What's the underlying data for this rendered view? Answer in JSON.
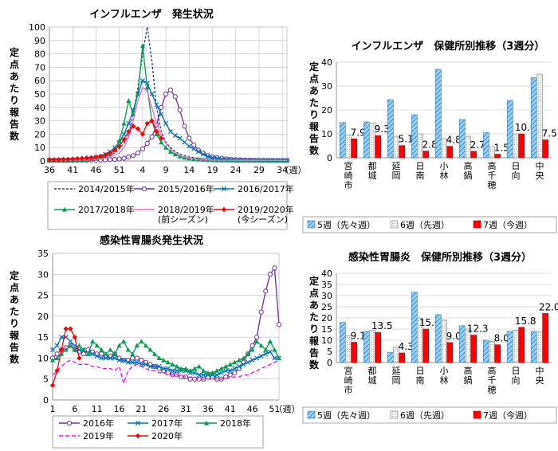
{
  "chart_data": [
    {
      "id": "flu_trend",
      "type": "line",
      "title": "インフルエンザ　発生状況",
      "ylabel": "定点あたり報告数",
      "xlabel": "（週）",
      "ylim": [
        0,
        100
      ],
      "yticks": [
        0,
        10,
        20,
        30,
        40,
        50,
        60,
        70,
        80,
        90,
        100
      ],
      "x_tick_labels": [
        "36",
        "41",
        "46",
        "51",
        "4",
        "9",
        "14",
        "19",
        "24",
        "29",
        "34"
      ],
      "grid": true,
      "legend_position": "bottom",
      "series": [
        {
          "name": "2014/2015年",
          "color": "#1f3f8f",
          "marker": "none",
          "dash": "3,2",
          "values": [
            0.5,
            0.5,
            0.5,
            0.5,
            0.6,
            0.6,
            0.7,
            0.8,
            1,
            1.2,
            1.5,
            2,
            3,
            4,
            6,
            9,
            13,
            20,
            35,
            55,
            80,
            100,
            75,
            40,
            22,
            14,
            10,
            7,
            5,
            4,
            3,
            2.5,
            2,
            1.5,
            1.2,
            1,
            0.8,
            0.7,
            0.6,
            0.5,
            0.5,
            0.5,
            0.4,
            0.4,
            0.4,
            0.4,
            0.3,
            0.3,
            0.3,
            0.3,
            0.3,
            0.3
          ]
        },
        {
          "name": "2015/2016年",
          "color": "#7030a0",
          "marker": "circle",
          "dash": "",
          "values": [
            0.5,
            0.5,
            0.5,
            0.4,
            0.4,
            0.4,
            0.5,
            0.5,
            0.5,
            0.6,
            0.6,
            0.7,
            0.8,
            1,
            1.2,
            1.5,
            2,
            3,
            4,
            6,
            9,
            13,
            18,
            27,
            40,
            50,
            53,
            48,
            38,
            26,
            17,
            12,
            8,
            6,
            4,
            3,
            2.5,
            2,
            1.5,
            1.2,
            1,
            0.8,
            0.7,
            0.6,
            0.5,
            0.5,
            0.5,
            0.4,
            0.4,
            0.4,
            0.4,
            0.4
          ]
        },
        {
          "name": "2016/2017年",
          "color": "#0070c0",
          "marker": "x",
          "dash": "",
          "values": [
            0.5,
            0.5,
            0.5,
            0.6,
            0.6,
            0.7,
            0.8,
            1,
            1.3,
            1.8,
            2.5,
            3.5,
            5,
            7,
            10,
            14,
            20,
            28,
            38,
            50,
            60,
            58,
            50,
            42,
            35,
            28,
            22,
            19,
            17,
            14,
            11,
            9,
            7,
            5,
            3.5,
            2.5,
            2,
            1.5,
            1.2,
            1,
            0.8,
            0.7,
            0.6,
            0.5,
            0.5,
            0.4,
            0.4,
            0.4,
            0.4,
            0.4,
            0.4,
            0.4
          ]
        },
        {
          "name": "2017/2018年",
          "color": "#00a050",
          "marker": "triangle",
          "dash": "",
          "values": [
            0.5,
            0.5,
            0.5,
            0.5,
            0.6,
            0.6,
            0.7,
            0.8,
            1,
            1.3,
            1.8,
            2.5,
            3.5,
            5,
            8,
            15,
            28,
            45,
            35,
            50,
            86,
            55,
            30,
            20,
            14,
            10,
            7,
            5,
            3.5,
            2.5,
            2,
            1.5,
            1.2,
            1,
            0.8,
            0.7,
            0.6,
            0.5,
            0.5,
            0.5,
            0.4,
            0.4,
            0.4,
            0.4,
            0.4,
            0.4,
            0.4,
            0.3,
            0.3,
            0.3,
            0.3,
            0.3
          ]
        },
        {
          "name": "2018/2019年\n(前シーズン)",
          "color": "#ff66cc",
          "marker": "none",
          "dash": "",
          "values": [
            0.5,
            0.5,
            0.5,
            0.5,
            0.5,
            0.6,
            0.6,
            0.7,
            0.8,
            1,
            1.2,
            1.5,
            2,
            3,
            4,
            6,
            10,
            18,
            30,
            45,
            55,
            52,
            40,
            28,
            19,
            13,
            9,
            6,
            4,
            3,
            2,
            1.5,
            1.2,
            1,
            0.8,
            0.7,
            0.6,
            0.5,
            0.5,
            0.5,
            0.4,
            0.4,
            0.4,
            0.4,
            0.4,
            0.4,
            0.4,
            0.4,
            0.4,
            0.4,
            0.4,
            0.4
          ]
        },
        {
          "name": "2019/2020年\n(今シーズン)",
          "color": "#ff0000",
          "marker": "diamond",
          "dash": "",
          "values": [
            1,
            1,
            1,
            1.2,
            1.3,
            1.5,
            1.8,
            2,
            2.3,
            2.5,
            3,
            3.5,
            4.5,
            6,
            8,
            11,
            16,
            22,
            26,
            24,
            20,
            28,
            30,
            22,
            17
          ]
        }
      ]
    },
    {
      "id": "flu_bar",
      "type": "bar",
      "title": "インフルエンザ　保健所別推移（3週分）",
      "ylabel": "定点あたり報告数",
      "ylim": [
        0,
        40
      ],
      "yticks": [
        0,
        10,
        20,
        30,
        40
      ],
      "categories": [
        "宮崎市",
        "都城",
        "延岡",
        "日南",
        "小林",
        "高鍋",
        "高千穂",
        "日向",
        "中央"
      ],
      "series": [
        {
          "name": "5週（先々週）",
          "color": "#4a9fd8",
          "pattern": "hatch",
          "values": [
            14.7,
            15.0,
            24.3,
            18.0,
            37.0,
            16.0,
            10.5,
            24.0,
            33.5
          ]
        },
        {
          "name": "6週（先週）",
          "color": "#d0d0d0",
          "pattern": "dots",
          "values": [
            9.5,
            14.5,
            9.0,
            10.0,
            8.0,
            9.0,
            4.5,
            10.0,
            35.0
          ]
        },
        {
          "name": "7週（今週）",
          "color": "#ff0000",
          "pattern": "solid",
          "values": [
            7.9,
            9.3,
            5.1,
            2.8,
            4.8,
            2.7,
            1.5,
            10.0,
            7.5
          ]
        }
      ],
      "data_labels": [
        "7.9",
        "9.3",
        "5.1",
        "2.8",
        "4.8",
        "2.7",
        "1.5",
        "10.0",
        "7.5"
      ],
      "legend_position": "bottom"
    },
    {
      "id": "gastro_trend",
      "type": "line",
      "title": "感染性胃腸炎発生状況",
      "ylabel": "定点あたり報告数",
      "xlabel": "（週）",
      "ylim": [
        0,
        35
      ],
      "yticks": [
        0,
        5,
        10,
        15,
        20,
        25,
        30,
        35
      ],
      "x_tick_labels": [
        "1",
        "6",
        "11",
        "16",
        "21",
        "26",
        "31",
        "36",
        "41",
        "46",
        "51"
      ],
      "grid": true,
      "legend_position": "bottom",
      "series": [
        {
          "name": "2016年",
          "color": "#7030a0",
          "marker": "circle",
          "dash": "",
          "values": [
            10,
            11,
            12,
            12.5,
            13,
            12,
            11.5,
            11,
            12,
            11.5,
            11,
            11,
            10.5,
            10.5,
            11,
            10,
            9.5,
            9.5,
            10,
            10,
            9.5,
            9,
            8.5,
            8,
            7.5,
            7,
            6.5,
            6,
            6,
            5.5,
            5.5,
            5,
            5,
            5,
            5,
            5.5,
            5.5,
            5,
            5,
            5.5,
            6,
            6.5,
            7.5,
            9,
            11,
            13,
            15,
            21,
            26,
            30,
            31.5,
            18
          ]
        },
        {
          "name": "2017年",
          "color": "#0070c0",
          "marker": "x",
          "dash": "",
          "values": [
            12,
            13,
            15,
            15,
            14,
            13,
            12,
            12,
            11,
            11,
            10.5,
            10,
            10,
            10,
            10,
            9.5,
            9.5,
            9,
            9,
            9,
            8.5,
            8.5,
            8,
            8,
            8,
            7.5,
            7.5,
            7,
            7,
            7,
            7,
            6.5,
            6.5,
            6,
            6,
            6,
            6,
            6,
            6.5,
            7,
            7,
            7.5,
            8,
            8.5,
            9,
            9.5,
            10,
            10.5,
            11,
            11.5,
            10,
            10
          ]
        },
        {
          "name": "2018年",
          "color": "#00a050",
          "marker": "triangle",
          "dash": "",
          "values": [
            9.5,
            10,
            11,
            12,
            13,
            12,
            13,
            12,
            11,
            14,
            13,
            12,
            11,
            12,
            11,
            13,
            14,
            12,
            11,
            13,
            14,
            13,
            12,
            11,
            10,
            9.5,
            9,
            8.5,
            8,
            7.5,
            7.5,
            7,
            7.5,
            8,
            7,
            6.5,
            6.5,
            7,
            7.5,
            8,
            8.5,
            9,
            9.5,
            10,
            11,
            12,
            14,
            13,
            12,
            14,
            12,
            10
          ]
        },
        {
          "name": "2019年",
          "color": "#ff00ff",
          "marker": "none",
          "dash": "5,3",
          "values": [
            6,
            7,
            8,
            9,
            9.5,
            9,
            8.5,
            8.5,
            8.5,
            8,
            8,
            7.5,
            7.5,
            7.5,
            7,
            8,
            4,
            7,
            8,
            8.5,
            8,
            7.5,
            7,
            7,
            6.5,
            6.5,
            6,
            6,
            6,
            5.5,
            5.5,
            5.5,
            5.5,
            5,
            5,
            5,
            5,
            5,
            5,
            5,
            5.5,
            5.5,
            5.5,
            6,
            6,
            6.5,
            7,
            7.5,
            8,
            8.5,
            9,
            9.5
          ]
        },
        {
          "name": "2020年",
          "color": "#ff0000",
          "marker": "diamond",
          "dash": "",
          "values": [
            3.5,
            7,
            12,
            17,
            17,
            15,
            10
          ]
        }
      ]
    },
    {
      "id": "gastro_bar",
      "type": "bar",
      "title": "感染性胃腸炎　保健所別推移（3週分）",
      "ylabel": "定点あたり報告数",
      "ylim": [
        0,
        40
      ],
      "yticks": [
        0,
        5,
        10,
        15,
        20,
        25,
        30,
        35,
        40
      ],
      "categories": [
        "宮崎市",
        "都城",
        "延岡",
        "日南",
        "小林",
        "高鍋",
        "高千穂",
        "日向",
        "中央"
      ],
      "series": [
        {
          "name": "5週（先々週）",
          "color": "#4a9fd8",
          "pattern": "hatch",
          "values": [
            18.0,
            14.0,
            4.5,
            31.5,
            21.5,
            16.5,
            10.0,
            14.0,
            14.0
          ]
        },
        {
          "name": "6週（先週）",
          "color": "#d0d0d0",
          "pattern": "dots",
          "values": [
            12.0,
            14.5,
            7.0,
            20.0,
            19.0,
            15.0,
            9.5,
            14.5,
            14.0
          ]
        },
        {
          "name": "7週（今週）",
          "color": "#ff0000",
          "pattern": "solid",
          "values": [
            9.1,
            13.5,
            4.3,
            15.0,
            9.0,
            12.3,
            8.0,
            15.8,
            22.0
          ]
        }
      ],
      "data_labels": [
        "9.1",
        "13.5",
        "4.3",
        "15.0",
        "9.0",
        "12.3",
        "8.0",
        "15.8",
        "22.0"
      ],
      "legend_position": "bottom"
    }
  ]
}
